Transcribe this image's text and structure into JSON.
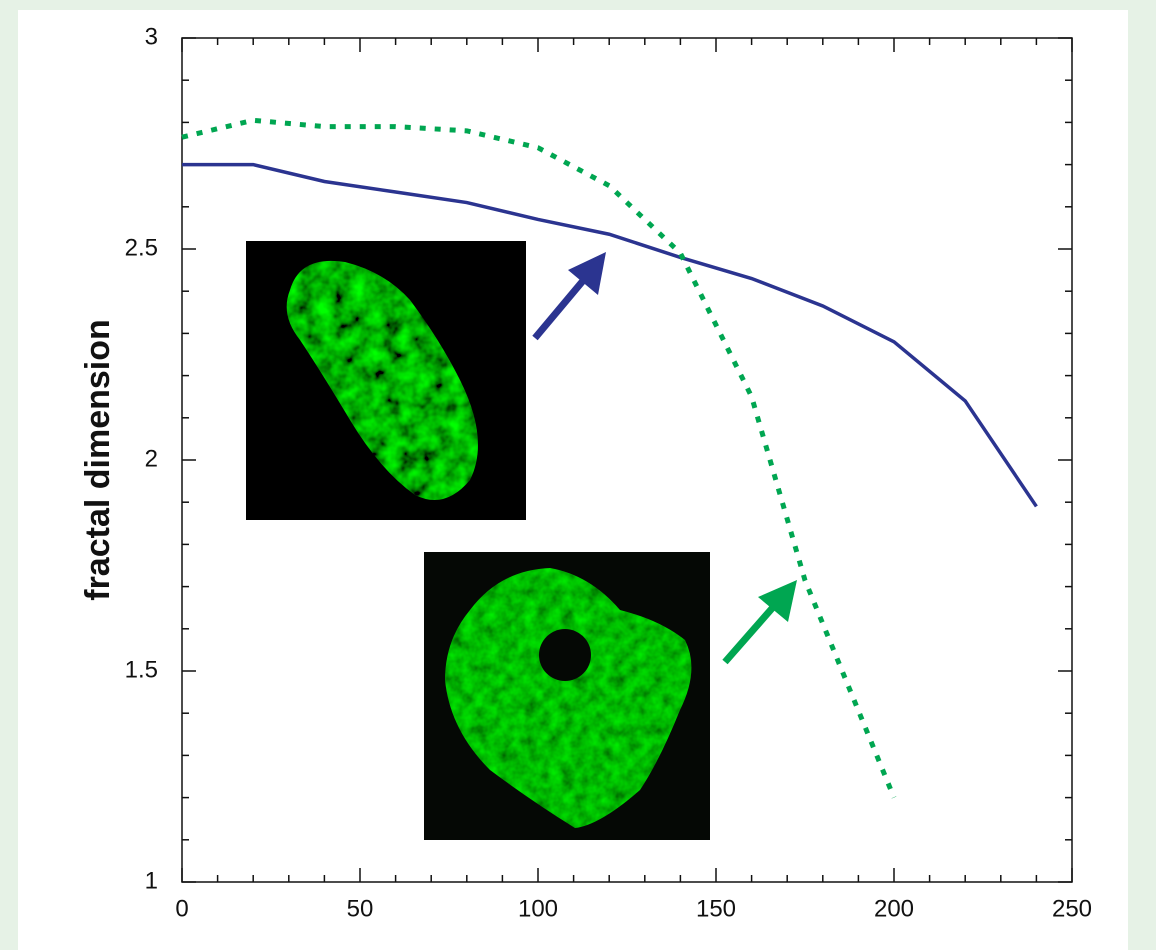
{
  "chart_data": {
    "type": "line",
    "ylabel": "fractal dimension",
    "xlim": [
      0,
      250
    ],
    "xticks": [
      0,
      50,
      100,
      150,
      200,
      250
    ],
    "ylim": [
      1,
      3
    ],
    "yticks": [
      1,
      {
        "value": 1.5,
        "label": "1.5"
      },
      2,
      {
        "value": 2.5,
        "label": "2.5"
      },
      3
    ],
    "series": [
      {
        "color": "#2b3490",
        "style": "solid",
        "x": [
          0,
          20,
          40,
          60,
          80,
          100,
          120,
          140,
          160,
          180,
          200,
          220,
          240
        ],
        "values": [
          2.7,
          2.7,
          2.66,
          2.635,
          2.61,
          2.57,
          2.535,
          2.48,
          2.43,
          2.365,
          2.28,
          2.14,
          1.89
        ]
      },
      {
        "color": "#00a651",
        "style": "dotted",
        "x": [
          0,
          20,
          40,
          60,
          80,
          100,
          120,
          140,
          160,
          175,
          200
        ],
        "values": [
          2.765,
          2.805,
          2.79,
          2.79,
          2.78,
          2.74,
          2.65,
          2.49,
          2.15,
          1.715,
          1.2
        ]
      }
    ]
  }
}
